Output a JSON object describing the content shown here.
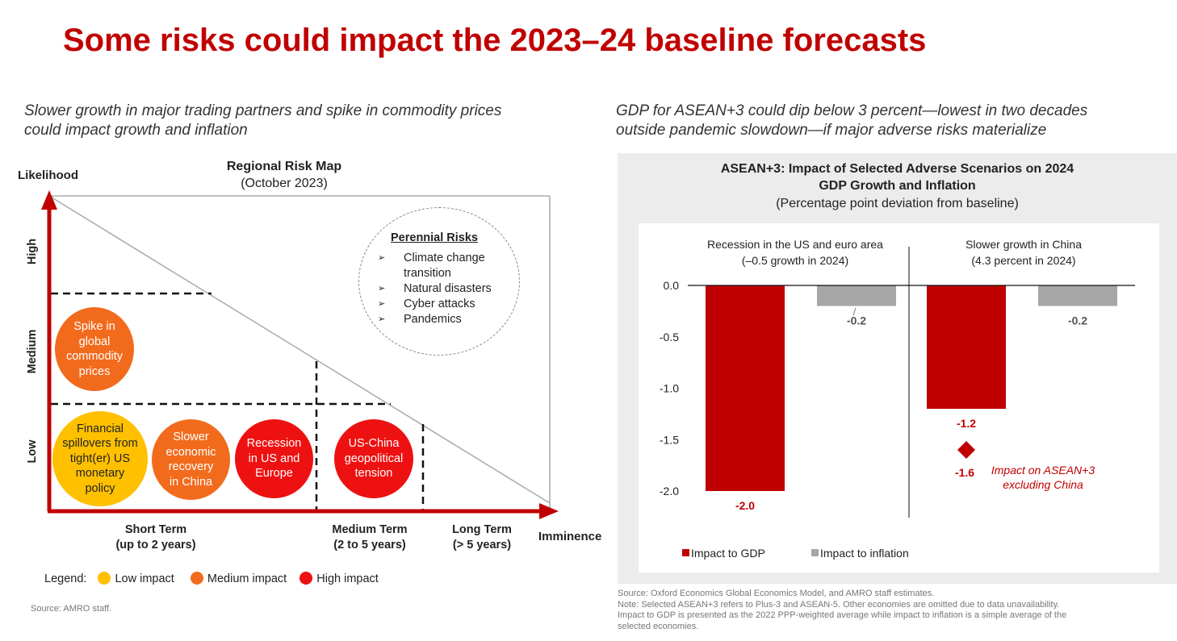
{
  "title": "Some risks could impact the 2023–24 baseline forecasts",
  "left": {
    "subtitle": "Slower growth in major trading partners and spike in commodity prices\ncould impact growth and inflation",
    "map_title": "Regional Risk Map",
    "map_subtitle": "(October 2023)",
    "y_axis_label": "Likelihood",
    "x_axis_label": "Imminence",
    "likelihood_levels": [
      "High",
      "Medium",
      "Low"
    ],
    "imminence_levels": [
      {
        "label": "Short Term",
        "sub": "(up to 2 years)"
      },
      {
        "label": "Medium Term",
        "sub": "(2 to 5 years)"
      },
      {
        "label": "Long Term",
        "sub": "(> 5 years)"
      }
    ],
    "risks": [
      {
        "label": "Spike in global commodity prices",
        "impact": "medium"
      },
      {
        "label": "Financial spillovers from tight(er) US monetary policy",
        "impact": "low"
      },
      {
        "label": "Slower economic recovery in China",
        "impact": "medium"
      },
      {
        "label": "Recession in US and Europe",
        "impact": "high"
      },
      {
        "label": "US-China geopolitical tension",
        "impact": "high"
      }
    ],
    "perennial": {
      "title": "Perennial Risks",
      "items": [
        "Climate change transition",
        "Natural disasters",
        "Cyber attacks",
        "Pandemics"
      ]
    },
    "legend": {
      "prefix": "Legend:",
      "low": "Low impact",
      "medium": "Medium impact",
      "high": "High impact"
    },
    "source": "Source: AMRO staff."
  },
  "right": {
    "subtitle": "GDP for ASEAN+3 could dip below 3 percent—lowest in two decades\noutside pandemic slowdown—if major adverse risks materialize",
    "chart_title_1": "ASEAN+3: Impact of Selected Adverse Scenarios on 2024",
    "chart_title_2": "GDP Growth and Inflation",
    "chart_subtitle": "(Percentage point deviation from baseline)",
    "source_lines": [
      "Source: Oxford Economics Global Economics Model, and AMRO staff estimates.",
      "Note: Selected ASEAN+3 refers to Plus-3 and ASEAN-5. Other economies are omitted due to data unavailability.",
      "Impact to GDP is presented as the 2022 PPP-weighted average while impact to inflation is a simple average of the",
      "selected economies."
    ]
  },
  "colors": {
    "title_red": "#c00000",
    "axis_red": "#c00000",
    "gdp_bar": "#c00000",
    "inflation_bar": "#a6a6a6",
    "low_impact": "#ffc000",
    "medium_impact": "#f26b1d",
    "high_impact": "#ee1111"
  },
  "chart_data": {
    "type": "bar",
    "categories": [
      "Recession in the US and euro area (–0.5 growth in 2024)",
      "Slower growth in China (4.3 percent in 2024)"
    ],
    "category_lines": [
      [
        "Recession in the US and euro area",
        "(–0.5 growth in 2024)"
      ],
      [
        "Slower growth in China",
        "(4.3 percent in 2024)"
      ]
    ],
    "series": [
      {
        "name": "Impact to GDP",
        "values": [
          -2.0,
          -1.2
        ],
        "labels": [
          "-2.0",
          "-1.2"
        ]
      },
      {
        "name": "Impact to inflation",
        "values": [
          -0.2,
          -0.2
        ],
        "labels": [
          "-0.2",
          "-0.2"
        ]
      }
    ],
    "annotation": {
      "category": 1,
      "value": -1.6,
      "label": "-1.6",
      "text_lines": [
        "Impact on ASEAN+3",
        "excluding China"
      ]
    },
    "ylim": [
      -2.0,
      0.0
    ],
    "yticks": [
      0.0,
      -0.5,
      -1.0,
      -1.5,
      -2.0
    ],
    "ytick_labels": [
      "0.0",
      "-0.5",
      "-1.0",
      "-1.5",
      "-2.0"
    ],
    "xlabel": "",
    "ylabel": "",
    "legend_position": "bottom-left"
  }
}
